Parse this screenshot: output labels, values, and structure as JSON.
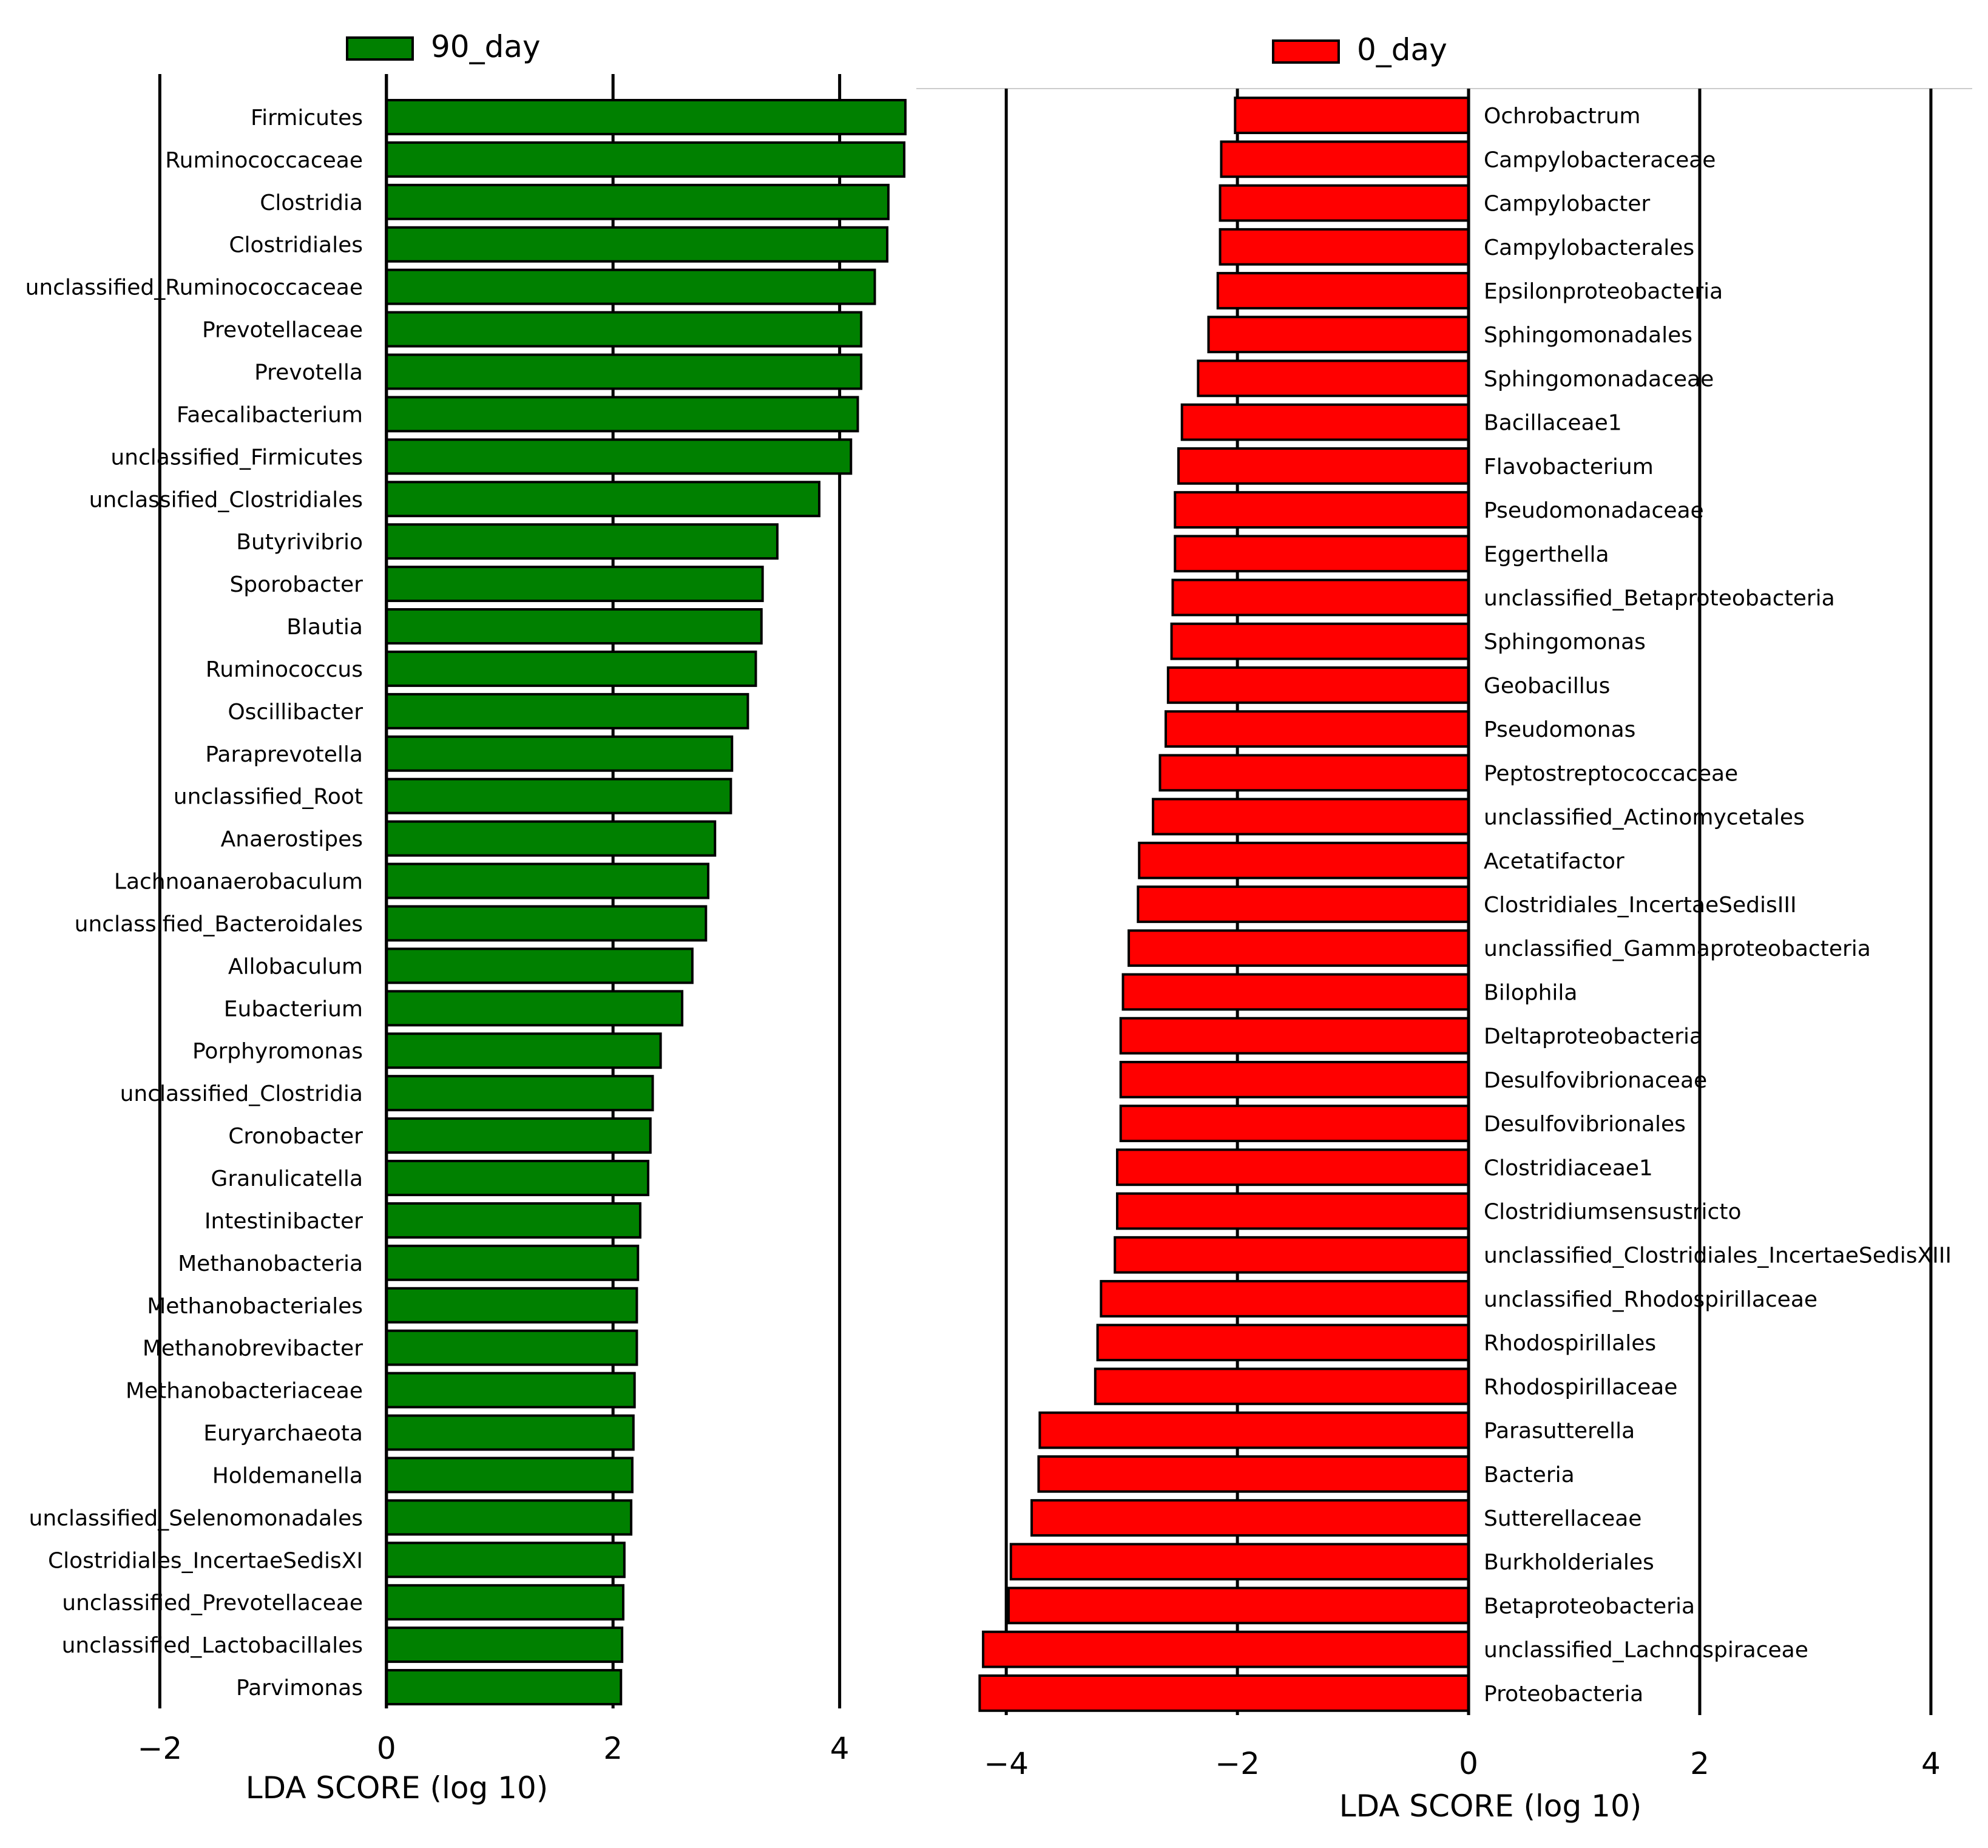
{
  "chart_data": [
    {
      "type": "bar",
      "orientation": "horizontal",
      "title": "",
      "legend": "90_day",
      "xlabel": "LDA SCORE (log 10)",
      "ylabel": "",
      "xlim": [
        -2.2,
        4.8
      ],
      "xticks": [
        -2,
        0,
        2,
        4
      ],
      "xtick_labels": [
        "−2",
        "0",
        "2",
        "4"
      ],
      "grid": true,
      "color": "#008000",
      "categories": [
        "Firmicutes",
        "Ruminococcaceae",
        "Clostridia",
        "Clostridiales",
        "unclassified_Ruminococcaceae",
        "Prevotellaceae",
        "Prevotella",
        "Faecalibacterium",
        "unclassified_Firmicutes",
        "unclassified_Clostridiales",
        "Butyrivibrio",
        "Sporobacter",
        "Blautia",
        "Ruminococcus",
        "Oscillibacter",
        "Paraprevotella",
        "unclassified_Root",
        "Anaerostipes",
        "Lachnoanaerobaculum",
        "unclassified_Bacteroidales",
        "Allobaculum",
        "Eubacterium",
        "Porphyromonas",
        "unclassified_Clostridia",
        "Cronobacter",
        "Granulicatella",
        "Intestinibacter",
        "Methanobacteria",
        "Methanobacteriales",
        "Methanobrevibacter",
        "Methanobacteriaceae",
        "Euryarchaeota",
        "Holdemanella",
        "unclassified_Selenomonadales",
        "Clostridiales_IncertaeSedisXI",
        "unclassified_Prevotellaceae",
        "unclassified_Lactobacillales",
        "Parvimonas"
      ],
      "values": [
        4.58,
        4.57,
        4.43,
        4.42,
        4.31,
        4.19,
        4.19,
        4.16,
        4.1,
        3.82,
        3.45,
        3.32,
        3.31,
        3.26,
        3.19,
        3.05,
        3.04,
        2.9,
        2.84,
        2.82,
        2.7,
        2.61,
        2.42,
        2.35,
        2.33,
        2.31,
        2.24,
        2.22,
        2.21,
        2.21,
        2.19,
        2.18,
        2.17,
        2.16,
        2.1,
        2.09,
        2.08,
        2.07
      ]
    },
    {
      "type": "bar",
      "orientation": "horizontal",
      "title": "",
      "legend": "0_day",
      "xlabel": "LDA SCORE (log 10)",
      "ylabel": "",
      "xlim": [
        -4.4,
        4.2
      ],
      "xticks": [
        -4,
        -2,
        0,
        2,
        4
      ],
      "xtick_labels": [
        "−4",
        "−2",
        "0",
        "2",
        "4"
      ],
      "grid": true,
      "color": "#ff0000",
      "categories": [
        "Ochrobactrum",
        "Campylobacteraceae",
        "Campylobacter",
        "Campylobacterales",
        "Epsilonproteobacteria",
        "Sphingomonadales",
        "Sphingomonadaceae",
        "Bacillaceae1",
        "Flavobacterium",
        "Pseudomonadaceae",
        "Eggerthella",
        "unclassified_Betaproteobacteria",
        "Sphingomonas",
        "Geobacillus",
        "Pseudomonas",
        "Peptostreptococcaceae",
        "unclassified_Actinomycetales",
        "Acetatifactor",
        "Clostridiales_IncertaeSedisIII",
        "unclassified_Gammaproteobacteria",
        "Bilophila",
        "Deltaproteobacteria",
        "Desulfovibrionaceae",
        "Desulfovibrionales",
        "Clostridiaceae1",
        "Clostridiumsensustricto",
        "unclassified_Clostridiales_IncertaeSedisXIII",
        "unclassified_Rhodospirillaceae",
        "Rhodospirillales",
        "Rhodospirillaceae",
        "Parasutterella",
        "Bacteria",
        "Sutterellaceae",
        "Burkholderiales",
        "Betaproteobacteria",
        "unclassified_Lachnospiraceae",
        "Proteobacteria"
      ],
      "values": [
        -2.02,
        -2.14,
        -2.15,
        -2.15,
        -2.17,
        -2.25,
        -2.34,
        -2.48,
        -2.51,
        -2.54,
        -2.54,
        -2.56,
        -2.57,
        -2.6,
        -2.62,
        -2.67,
        -2.73,
        -2.85,
        -2.86,
        -2.94,
        -2.99,
        -3.01,
        -3.01,
        -3.01,
        -3.04,
        -3.04,
        -3.06,
        -3.18,
        -3.21,
        -3.23,
        -3.71,
        -3.72,
        -3.78,
        -3.96,
        -3.98,
        -4.2,
        -4.23
      ]
    }
  ]
}
